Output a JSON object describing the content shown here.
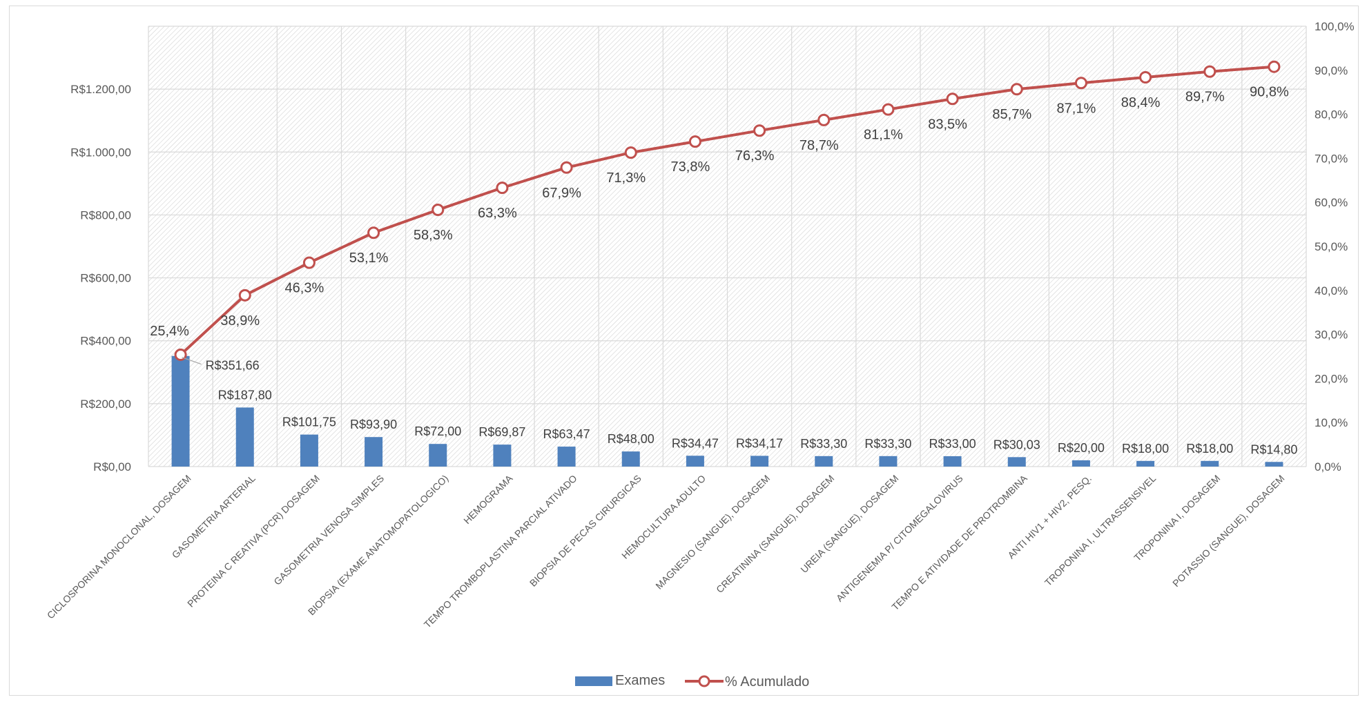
{
  "chart_data": {
    "type": "bar",
    "title": "",
    "xlabel": "",
    "ylabel": "",
    "categories": [
      "CICLOSPORINA MONOCLONAL, DOSAGEM",
      "GASOMETRIA ARTERIAL",
      "PROTEINA C REATIVA (PCR) DOSAGEM",
      "GASOMETRIA VENOSA SIMPLES",
      "BIOPSIA (EXAME ANATOMOPATOLOGICO)",
      "HEMOGRAMA",
      "TEMPO TROMBOPLASTINA PARCIAL ATIVADO",
      "BIOPSIA DE PECAS CIRURGICAS",
      "HEMOCULTURA ADULTO",
      "MAGNESIO (SANGUE), DOSAGEM",
      "CREATININA (SANGUE), DOSAGEM",
      "UREIA (SANGUE), DOSAGEM",
      "ANTIGENEMIA P/ CITOMEGALOVIRUS",
      "TEMPO E ATIVIDADE DE PROTROMBINA",
      "ANTI HIV1 + HIV2, PESQ.",
      "TROPONINA I, ULTRASSENSIVEL",
      "TROPONINA I, DOSAGEM",
      "POTASSIO (SANGUE), DOSAGEM"
    ],
    "series": [
      {
        "name": "Exames",
        "type": "bar",
        "axis": "left",
        "color": "#4f81bd",
        "values": [
          351.66,
          187.8,
          101.75,
          93.9,
          72.0,
          69.87,
          63.47,
          48.0,
          34.47,
          34.17,
          33.3,
          33.3,
          33.0,
          30.03,
          20.0,
          18.0,
          18.0,
          14.8
        ],
        "labels": [
          "R$351,66",
          "R$187,80",
          "R$101,75",
          "R$93,90",
          "R$72,00",
          "R$69,87",
          "R$63,47",
          "R$48,00",
          "R$34,47",
          "R$34,17",
          "R$33,30",
          "R$33,30",
          "R$33,00",
          "R$30,03",
          "R$20,00",
          "R$18,00",
          "R$18,00",
          "R$14,80"
        ]
      },
      {
        "name": "% Acumulado",
        "type": "line",
        "axis": "right",
        "color": "#c0504d",
        "values": [
          25.4,
          38.9,
          46.3,
          53.1,
          58.3,
          63.3,
          67.9,
          71.3,
          73.8,
          76.3,
          78.7,
          81.1,
          83.5,
          85.7,
          87.1,
          88.4,
          89.7,
          90.8
        ],
        "labels": [
          "25,4%",
          "38,9%",
          "46,3%",
          "53,1%",
          "58,3%",
          "63,3%",
          "67,9%",
          "71,3%",
          "73,8%",
          "76,3%",
          "78,7%",
          "81,1%",
          "83,5%",
          "85,7%",
          "87,1%",
          "88,4%",
          "89,7%",
          "90,8%"
        ]
      }
    ],
    "y_left": {
      "ylim": [
        0,
        1400
      ],
      "ticks": [
        0,
        200,
        400,
        600,
        800,
        1000,
        1200
      ],
      "tick_labels": [
        "R$0,00",
        "R$200,00",
        "R$400,00",
        "R$600,00",
        "R$800,00",
        "R$1.000,00",
        "R$1.200,00"
      ]
    },
    "y_right": {
      "ylim": [
        0,
        100
      ],
      "ticks": [
        0,
        10,
        20,
        30,
        40,
        50,
        60,
        70,
        80,
        90,
        100
      ],
      "tick_labels": [
        "0,0%",
        "10,0%",
        "20,0%",
        "30,0%",
        "40,0%",
        "50,0%",
        "60,0%",
        "70,0%",
        "80,0%",
        "90,0%",
        "100,0%"
      ]
    },
    "grid": true,
    "plot_background": "hatched",
    "legend": {
      "position": "bottom",
      "entries": [
        "Exames",
        "% Acumulado"
      ]
    }
  }
}
